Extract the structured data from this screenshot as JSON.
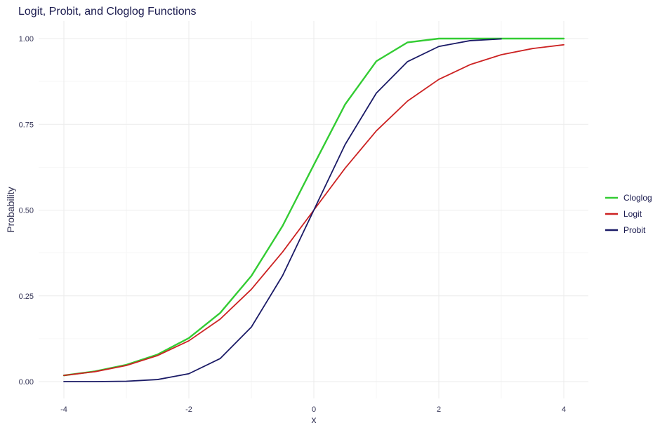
{
  "chart_data": {
    "type": "line",
    "title": "Logit, Probit, and Cloglog Functions",
    "xlabel": "x",
    "ylabel": "Probability",
    "xlim": [
      -4,
      4
    ],
    "ylim": [
      0,
      1
    ],
    "x_ticks": [
      "-4",
      "-2",
      "0",
      "2",
      "4"
    ],
    "y_ticks": [
      "0.00",
      "0.25",
      "0.50",
      "0.75",
      "1.00"
    ],
    "grid": true,
    "legend_position": "right",
    "x": [
      -4,
      -3.5,
      -3,
      -2.5,
      -2,
      -1.5,
      -1,
      -0.5,
      0,
      0.5,
      1,
      1.5,
      2,
      2.5,
      3,
      3.5,
      4
    ],
    "series": [
      {
        "name": "Cloglog",
        "color": "#33cc33",
        "values": [
          0.018,
          0.03,
          0.049,
          0.079,
          0.127,
          0.2,
          0.308,
          0.454,
          0.632,
          0.808,
          0.934,
          0.989,
          1.0,
          1.0,
          1.0,
          1.0,
          1.0
        ]
      },
      {
        "name": "Logit",
        "color": "#cc2222",
        "values": [
          0.018,
          0.029,
          0.047,
          0.076,
          0.119,
          0.182,
          0.269,
          0.378,
          0.5,
          0.622,
          0.731,
          0.818,
          0.881,
          0.924,
          0.953,
          0.971,
          0.982
        ]
      },
      {
        "name": "Probit",
        "color": "#1a1a66",
        "values": [
          0.0,
          0.0,
          0.001,
          0.006,
          0.023,
          0.067,
          0.159,
          0.309,
          0.5,
          0.691,
          0.841,
          0.933,
          0.977,
          0.994,
          0.999,
          null,
          null
        ]
      }
    ]
  }
}
